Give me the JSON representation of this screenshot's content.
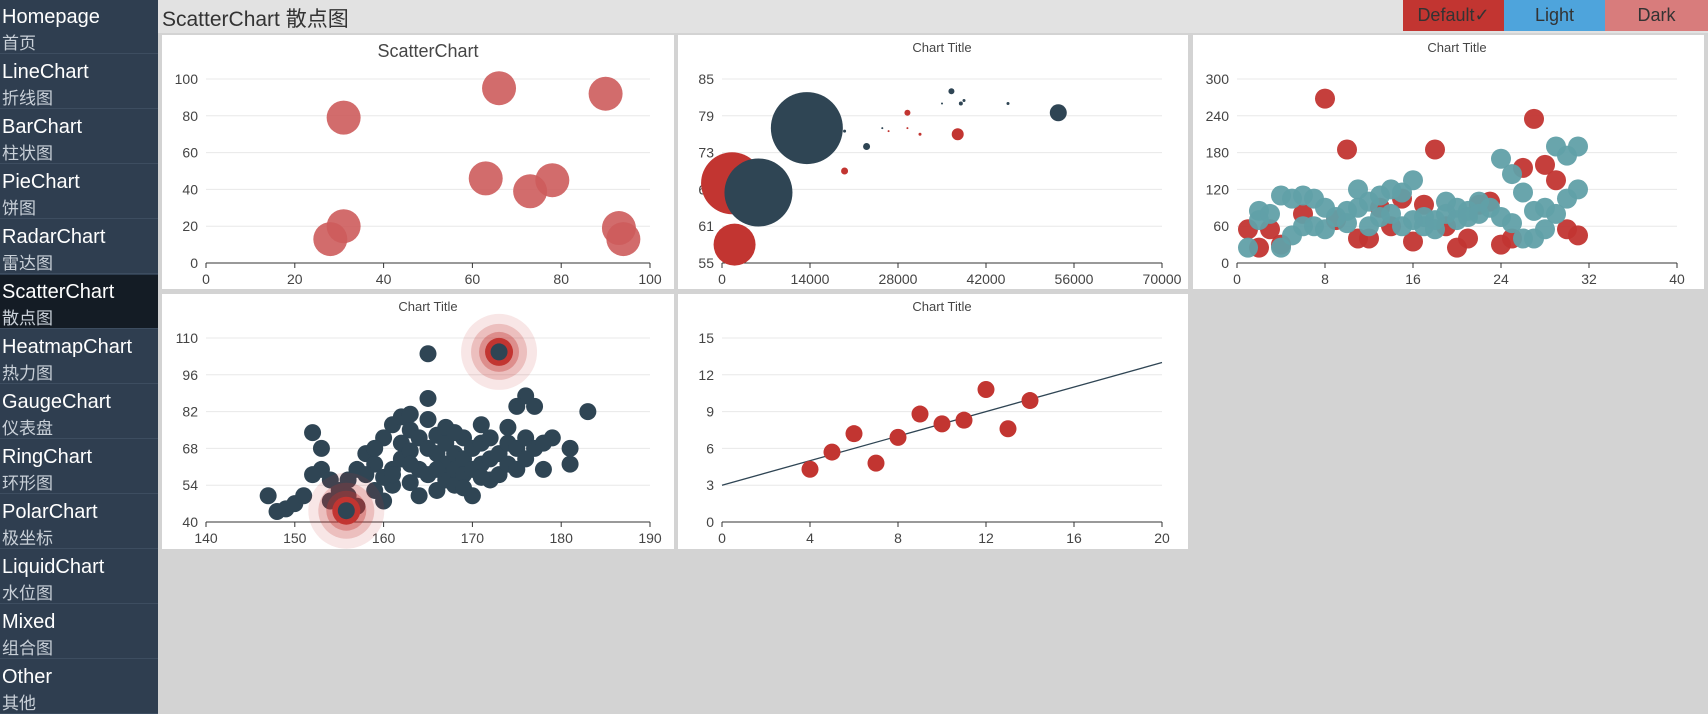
{
  "nav": [
    {
      "en": "Homepage",
      "zh": "首页"
    },
    {
      "en": "LineChart",
      "zh": "折线图"
    },
    {
      "en": "BarChart",
      "zh": "柱状图"
    },
    {
      "en": "PieChart",
      "zh": "饼图"
    },
    {
      "en": "RadarChart",
      "zh": "雷达图"
    },
    {
      "en": "ScatterChart",
      "zh": "散点图",
      "active": true
    },
    {
      "en": "HeatmapChart",
      "zh": "热力图"
    },
    {
      "en": "GaugeChart",
      "zh": "仪表盘"
    },
    {
      "en": "RingChart",
      "zh": "环形图"
    },
    {
      "en": "PolarChart",
      "zh": "极坐标"
    },
    {
      "en": "LiquidChart",
      "zh": "水位图"
    },
    {
      "en": "Mixed",
      "zh": "组合图"
    },
    {
      "en": "Other",
      "zh": "其他"
    }
  ],
  "header": {
    "title": "ScatterChart 散点图"
  },
  "themes": [
    {
      "label": "Default✓",
      "color": "#c23531",
      "selected": true
    },
    {
      "label": "Light",
      "color": "#4ea4dc"
    },
    {
      "label": "Dark",
      "color": "#d87c7c"
    }
  ],
  "colors": {
    "red": "#c23531",
    "dark": "#2f4554",
    "teal": "#61a0a8",
    "light_red": "#cd5c5c"
  },
  "chart_data": [
    {
      "type": "scatter",
      "title": "ScatterChart",
      "xlim": [
        0,
        100
      ],
      "xticks": [
        0,
        20,
        40,
        60,
        80,
        100
      ],
      "ylim": [
        0,
        100
      ],
      "yticks": [
        0,
        20,
        40,
        60,
        80,
        100
      ],
      "series": [
        {
          "color": "#cd5c5c",
          "points": [
            [
              28,
              13
            ],
            [
              31,
              20
            ],
            [
              31,
              79
            ],
            [
              63,
              46
            ],
            [
              66,
              95
            ],
            [
              73,
              39
            ],
            [
              78,
              45
            ],
            [
              90,
              92
            ],
            [
              93,
              19
            ],
            [
              94,
              13
            ]
          ]
        }
      ]
    },
    {
      "type": "scatter",
      "title": "Chart Title",
      "xlim": [
        0,
        70000
      ],
      "xticks": [
        0,
        14000,
        28000,
        42000,
        56000,
        70000
      ],
      "ylim": [
        55,
        85
      ],
      "yticks": [
        55,
        61,
        67,
        73,
        79,
        85
      ],
      "series": [
        {
          "color": "#c23531",
          "points": [
            [
              1600,
              68,
              62
            ],
            [
              2000,
              58,
              42
            ],
            [
              19500,
              70,
              7
            ],
            [
              29500,
              79.5,
              6
            ],
            [
              37500,
              76,
              12
            ],
            [
              29500,
              77,
              2
            ],
            [
              31500,
              76,
              3
            ],
            [
              26500,
              76.5,
              2
            ]
          ]
        },
        {
          "color": "#2f4554",
          "points": [
            [
              13500,
              77,
              72
            ],
            [
              5800,
              66.5,
              68
            ],
            [
              53500,
              79.5,
              17
            ],
            [
              36500,
              83,
              6
            ],
            [
              23000,
              74,
              7
            ],
            [
              38000,
              81,
              4
            ],
            [
              45500,
              81,
              3
            ],
            [
              38500,
              81.5,
              3
            ],
            [
              35000,
              81,
              2
            ],
            [
              19500,
              76.5,
              3
            ],
            [
              25500,
              77,
              1
            ]
          ]
        }
      ]
    },
    {
      "type": "scatter",
      "title": "Chart Title",
      "xlim": [
        0,
        40
      ],
      "xticks": [
        0,
        8,
        16,
        24,
        32,
        40
      ],
      "ylim": [
        0,
        300
      ],
      "yticks": [
        0,
        60,
        120,
        180,
        240,
        300
      ],
      "series": [
        {
          "color": "#c23531",
          "points": [
            [
              1,
              55
            ],
            [
              2,
              25
            ],
            [
              3,
              55
            ],
            [
              4,
              30
            ],
            [
              6,
              80
            ],
            [
              8,
              268
            ],
            [
              9,
              70
            ],
            [
              10,
              185
            ],
            [
              11,
              40
            ],
            [
              12,
              40
            ],
            [
              13,
              90
            ],
            [
              14,
              60
            ],
            [
              15,
              105
            ],
            [
              16,
              35
            ],
            [
              17,
              95
            ],
            [
              18,
              185
            ],
            [
              19,
              60
            ],
            [
              20,
              25
            ],
            [
              21,
              40
            ],
            [
              22,
              95
            ],
            [
              23,
              100
            ],
            [
              24,
              30
            ],
            [
              25,
              40
            ],
            [
              26,
              155
            ],
            [
              27,
              235
            ],
            [
              28,
              160
            ],
            [
              29,
              135
            ],
            [
              30,
              55
            ],
            [
              31,
              45
            ]
          ]
        },
        {
          "color": "#61a0a8",
          "points": [
            [
              1,
              25
            ],
            [
              2,
              85
            ],
            [
              2,
              70
            ],
            [
              3,
              80
            ],
            [
              4,
              110
            ],
            [
              5,
              45
            ],
            [
              4,
              25
            ],
            [
              5,
              105
            ],
            [
              6,
              110
            ],
            [
              6,
              60
            ],
            [
              7,
              105
            ],
            [
              7,
              60
            ],
            [
              8,
              90
            ],
            [
              8,
              55
            ],
            [
              9,
              75
            ],
            [
              10,
              85
            ],
            [
              10,
              65
            ],
            [
              11,
              120
            ],
            [
              11,
              90
            ],
            [
              12,
              100
            ],
            [
              12,
              60
            ],
            [
              13,
              110
            ],
            [
              13,
              75
            ],
            [
              14,
              120
            ],
            [
              14,
              80
            ],
            [
              15,
              115
            ],
            [
              15,
              60
            ],
            [
              16,
              135
            ],
            [
              16,
              70
            ],
            [
              17,
              75
            ],
            [
              17,
              60
            ],
            [
              18,
              70
            ],
            [
              18,
              55
            ],
            [
              19,
              100
            ],
            [
              19,
              80
            ],
            [
              20,
              90
            ],
            [
              20,
              70
            ],
            [
              21,
              85
            ],
            [
              21,
              75
            ],
            [
              22,
              100
            ],
            [
              22,
              80
            ],
            [
              23,
              90
            ],
            [
              24,
              170
            ],
            [
              24,
              75
            ],
            [
              25,
              145
            ],
            [
              25,
              65
            ],
            [
              26,
              115
            ],
            [
              26,
              40
            ],
            [
              27,
              40
            ],
            [
              27,
              85
            ],
            [
              28,
              90
            ],
            [
              28,
              55
            ],
            [
              29,
              190
            ],
            [
              29,
              80
            ],
            [
              30,
              175
            ],
            [
              30,
              105
            ],
            [
              31,
              190
            ],
            [
              31,
              120
            ]
          ]
        }
      ]
    },
    {
      "type": "scatter",
      "title": "Chart Title",
      "xlim": [
        140,
        190
      ],
      "xticks": [
        140,
        150,
        160,
        170,
        180,
        190
      ],
      "ylim": [
        40,
        110
      ],
      "yticks": [
        40,
        54,
        68,
        82,
        96,
        110
      ],
      "ripple_points": [
        [
          155.8,
          44.3
        ],
        [
          173,
          104.7
        ]
      ],
      "series": [
        {
          "color": "#2f4554",
          "points": [
            [
              147,
              50
            ],
            [
              149,
              45
            ],
            [
              150,
              47
            ],
            [
              151,
              50
            ],
            [
              152,
              74
            ],
            [
              153,
              68
            ],
            [
              153,
              60
            ],
            [
              154,
              48
            ],
            [
              155,
              52
            ],
            [
              156,
              56
            ],
            [
              157,
              60
            ],
            [
              157,
              46
            ],
            [
              158,
              66
            ],
            [
              159,
              62
            ],
            [
              159,
              52
            ],
            [
              160,
              48
            ],
            [
              160,
              57
            ],
            [
              160,
              72
            ],
            [
              161,
              77
            ],
            [
              161,
              54
            ],
            [
              161,
              60
            ],
            [
              162,
              64
            ],
            [
              162,
              70
            ],
            [
              162,
              80
            ],
            [
              163,
              55
            ],
            [
              163,
              67
            ],
            [
              163,
              75
            ],
            [
              163,
              81
            ],
            [
              164,
              60
            ],
            [
              164,
              72
            ],
            [
              164,
              50
            ],
            [
              165,
              58
            ],
            [
              165,
              68
            ],
            [
              165,
              104
            ],
            [
              165,
              79
            ],
            [
              166,
              52
            ],
            [
              166,
              66
            ],
            [
              166,
              73
            ],
            [
              167,
              56
            ],
            [
              167,
              62
            ],
            [
              167,
              70
            ],
            [
              167,
              76
            ],
            [
              168,
              54
            ],
            [
              168,
              60
            ],
            [
              168,
              66
            ],
            [
              169,
              64
            ],
            [
              169,
              72
            ],
            [
              169,
              58
            ],
            [
              170,
              50
            ],
            [
              170,
              60
            ],
            [
              170,
              68
            ],
            [
              171,
              62
            ],
            [
              171,
              70
            ],
            [
              171,
              77
            ],
            [
              172,
              56
            ],
            [
              172,
              64
            ],
            [
              172,
              72
            ],
            [
              173,
              58
            ],
            [
              173,
              66
            ],
            [
              173,
              104.7
            ],
            [
              174,
              62
            ],
            [
              174,
              70
            ],
            [
              174,
              76
            ],
            [
              175,
              60
            ],
            [
              175,
              68
            ],
            [
              176,
              64
            ],
            [
              176,
              72
            ],
            [
              177,
              68
            ],
            [
              177,
              84
            ],
            [
              178,
              60
            ],
            [
              178,
              70
            ],
            [
              179,
              72
            ],
            [
              181,
              68
            ],
            [
              181,
              62
            ],
            [
              183,
              82
            ],
            [
              176,
              88
            ],
            [
              175,
              84
            ],
            [
              165,
              87
            ],
            [
              168,
              74
            ],
            [
              161,
              58
            ],
            [
              159,
              68
            ],
            [
              166,
              60
            ],
            [
              169,
              53
            ],
            [
              171,
              57
            ],
            [
              163,
              62
            ],
            [
              158,
              58
            ],
            [
              156,
              50
            ],
            [
              154,
              56
            ],
            [
              152,
              58
            ],
            [
              148,
              44
            ]
          ]
        }
      ]
    },
    {
      "type": "scatter",
      "title": "Chart Title",
      "xlim": [
        0,
        20
      ],
      "xticks": [
        0,
        4,
        8,
        12,
        16,
        20
      ],
      "ylim": [
        0,
        15
      ],
      "yticks": [
        0,
        3,
        6,
        9,
        12,
        15
      ],
      "regression": [
        [
          0,
          3
        ],
        [
          20,
          13
        ]
      ],
      "series": [
        {
          "color": "#c23531",
          "points": [
            [
              4,
              4.3
            ],
            [
              5,
              5.7
            ],
            [
              6,
              7.2
            ],
            [
              7,
              4.8
            ],
            [
              8,
              6.9
            ],
            [
              9,
              8.8
            ],
            [
              10,
              8
            ],
            [
              11,
              8.3
            ],
            [
              12,
              10.8
            ],
            [
              13,
              7.6
            ],
            [
              14,
              9.9
            ]
          ]
        }
      ]
    }
  ]
}
